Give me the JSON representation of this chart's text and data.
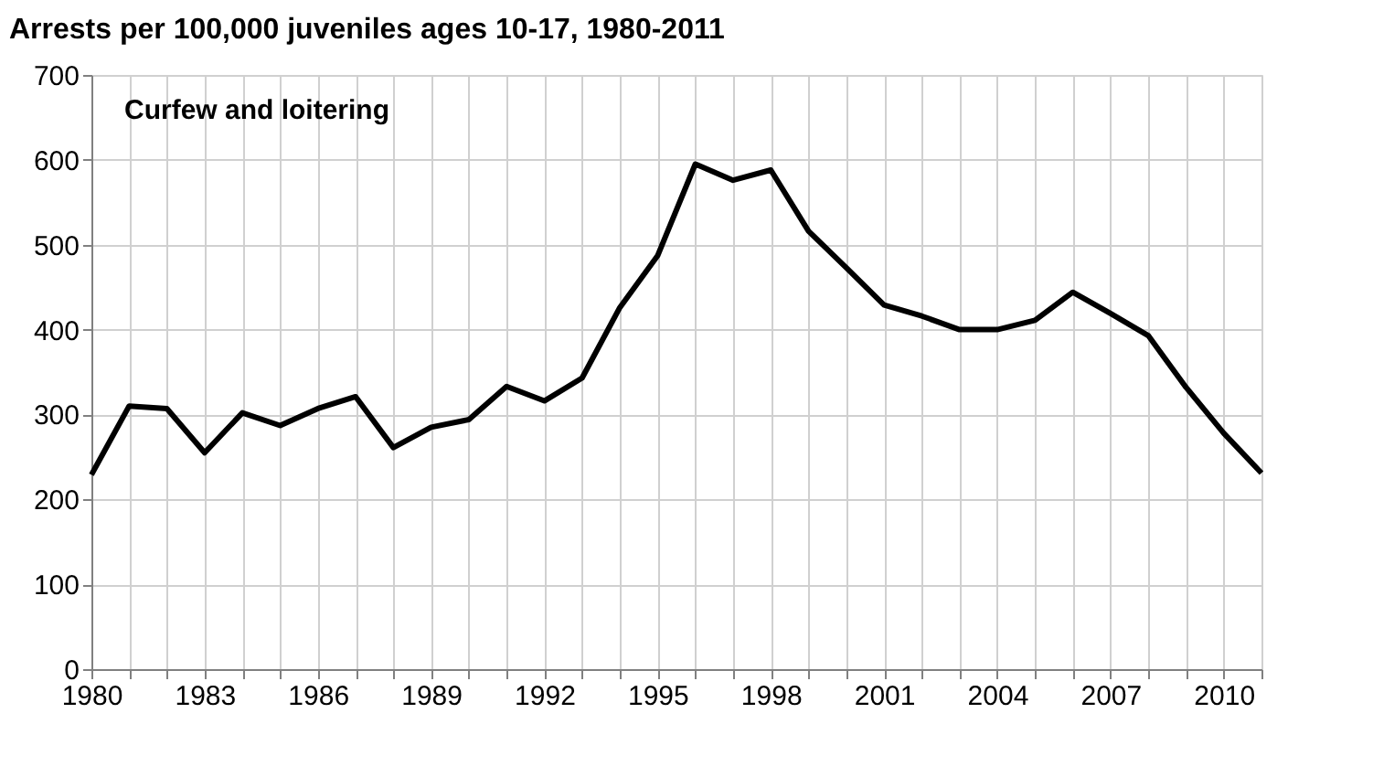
{
  "chart_data": {
    "type": "line",
    "title": "Arrests per 100,000 juveniles ages 10-17, 1980-2011",
    "annotations": [
      "Curfew and loitering"
    ],
    "x": [
      1980,
      1981,
      1982,
      1983,
      1984,
      1985,
      1986,
      1987,
      1988,
      1989,
      1990,
      1991,
      1992,
      1993,
      1994,
      1995,
      1996,
      1997,
      1998,
      1999,
      2000,
      2001,
      2002,
      2003,
      2004,
      2005,
      2006,
      2007,
      2008,
      2009,
      2010,
      2011
    ],
    "series": [
      {
        "color": "#000000",
        "values": [
          229,
          310,
          307,
          255,
          302,
          287,
          307,
          321,
          261,
          285,
          294,
          333,
          316,
          343,
          426,
          487,
          595,
          576,
          588,
          516,
          473,
          429,
          416,
          400,
          400,
          411,
          444,
          419,
          393,
          332,
          278,
          231
        ]
      }
    ],
    "xlim": [
      1980,
      2011
    ],
    "xticks": [
      1980,
      {
        "value": 1981,
        "label": null
      },
      {
        "value": 1982,
        "label": null
      },
      1983,
      {
        "value": 1984,
        "label": null
      },
      {
        "value": 1985,
        "label": null
      },
      1986,
      {
        "value": 1987,
        "label": null
      },
      {
        "value": 1988,
        "label": null
      },
      1989,
      {
        "value": 1990,
        "label": null
      },
      {
        "value": 1991,
        "label": null
      },
      1992,
      {
        "value": 1993,
        "label": null
      },
      {
        "value": 1994,
        "label": null
      },
      1995,
      {
        "value": 1996,
        "label": null
      },
      {
        "value": 1997,
        "label": null
      },
      1998,
      {
        "value": 1999,
        "label": null
      },
      {
        "value": 2000,
        "label": null
      },
      2001,
      {
        "value": 2002,
        "label": null
      },
      {
        "value": 2003,
        "label": null
      },
      2004,
      {
        "value": 2005,
        "label": null
      },
      {
        "value": 2006,
        "label": null
      },
      2007,
      {
        "value": 2008,
        "label": null
      },
      {
        "value": 2009,
        "label": null
      },
      2010,
      {
        "value": 2011,
        "label": null
      }
    ],
    "ylim": [
      0,
      700
    ],
    "yticks": [
      0,
      100,
      200,
      300,
      400,
      500,
      600,
      700
    ],
    "grid": true,
    "marker": "none",
    "line_style": "solid"
  }
}
